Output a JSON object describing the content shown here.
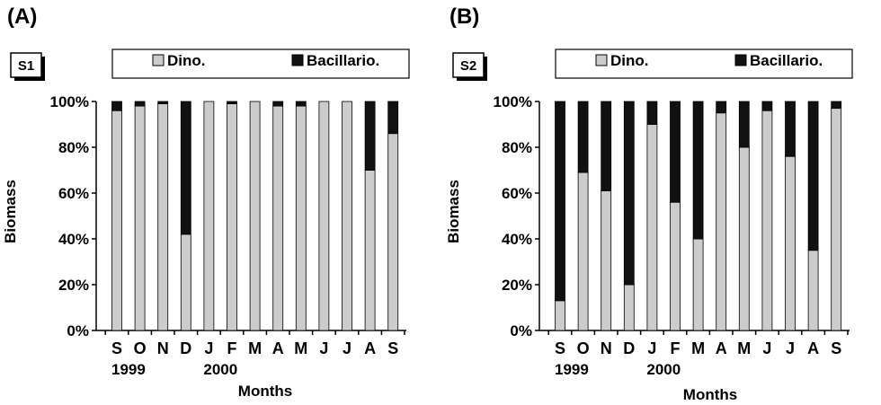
{
  "colors": {
    "dino": "#cccccc",
    "bacillario": "#111111",
    "stroke": "#000000"
  },
  "chart_data": [
    {
      "type": "bar",
      "stacked": true,
      "panel_label": "(A)",
      "station_label": "S1",
      "xlabel": "Months",
      "ylabel": "Biomass",
      "ylim": [
        0,
        100
      ],
      "yticks": [
        "0%",
        "20%",
        "40%",
        "60%",
        "80%",
        "100%"
      ],
      "categories": [
        "S",
        "O",
        "N",
        "D",
        "J",
        "F",
        "M",
        "A",
        "M",
        "J",
        "J",
        "A",
        "S"
      ],
      "year_labels": [
        {
          "text": "1999",
          "category_index": 0
        },
        {
          "text": "2000",
          "category_index": 4
        }
      ],
      "legend_position": "top",
      "series": [
        {
          "name": "Dino.",
          "values": [
            96,
            98,
            99,
            42,
            100,
            99,
            100,
            98,
            98,
            100,
            100,
            70,
            86
          ]
        },
        {
          "name": "Bacillario.",
          "values": [
            4,
            2,
            1,
            58,
            0,
            1,
            0,
            2,
            2,
            0,
            0,
            30,
            14
          ]
        }
      ]
    },
    {
      "type": "bar",
      "stacked": true,
      "panel_label": "(B)",
      "station_label": "S2",
      "xlabel": "Months",
      "ylabel": "Biomass",
      "ylim": [
        0,
        100
      ],
      "yticks": [
        "0%",
        "20%",
        "40%",
        "60%",
        "80%",
        "100%"
      ],
      "categories": [
        "S",
        "O",
        "N",
        "D",
        "J",
        "F",
        "M",
        "A",
        "M",
        "J",
        "J",
        "A",
        "S"
      ],
      "year_labels": [
        {
          "text": "1999",
          "category_index": 0
        },
        {
          "text": "2000",
          "category_index": 4
        }
      ],
      "legend_position": "top",
      "series": [
        {
          "name": "Dino.",
          "values": [
            13,
            69,
            61,
            20,
            90,
            56,
            40,
            95,
            80,
            96,
            76,
            35,
            97
          ]
        },
        {
          "name": "Bacillario.",
          "values": [
            87,
            31,
            39,
            80,
            10,
            44,
            60,
            5,
            20,
            4,
            24,
            65,
            3
          ]
        }
      ]
    }
  ]
}
